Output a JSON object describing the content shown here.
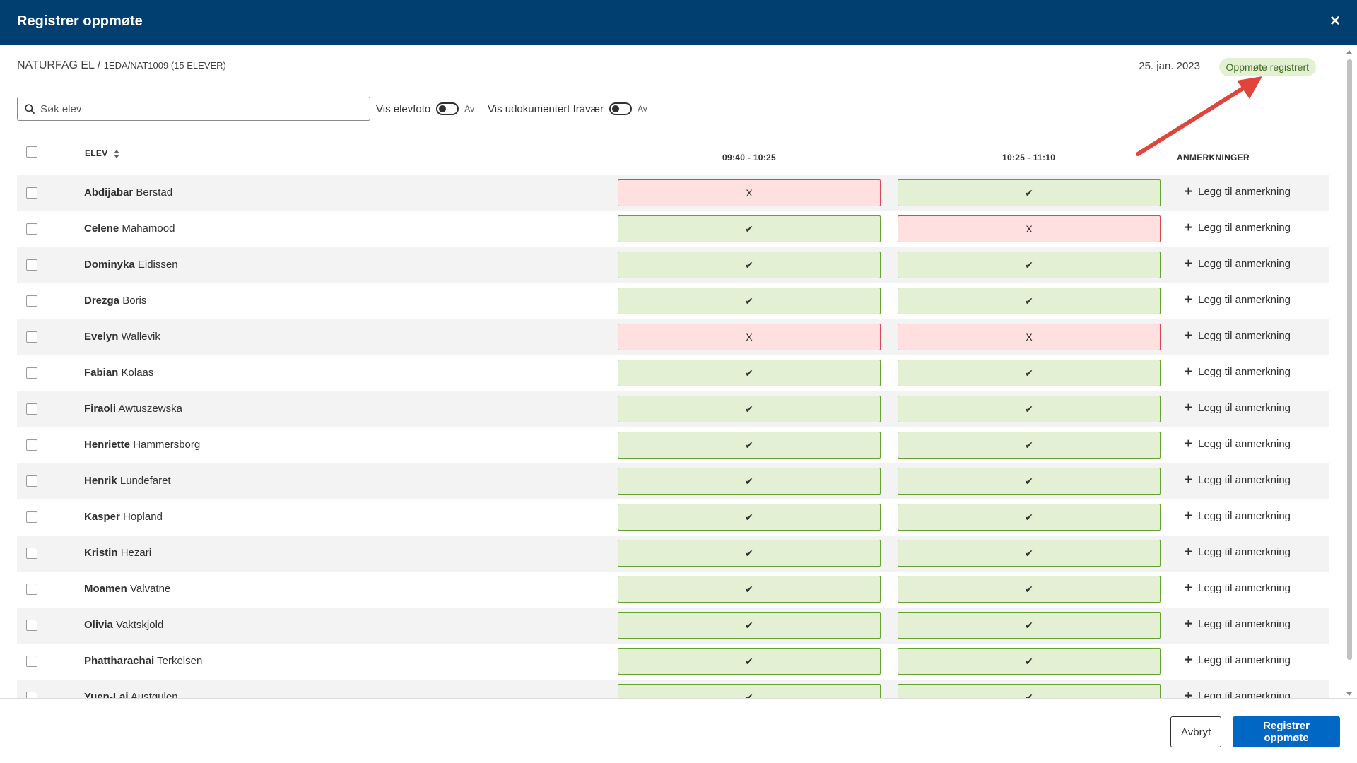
{
  "header": {
    "title": "Registrer oppmøte",
    "close_label": "×"
  },
  "subheader": {
    "course": "NATURFAG EL",
    "separator": " / ",
    "group": "1EDA/NAT1009 (15 ELEVER)",
    "date": "25. jan. 2023",
    "status": "Oppmøte registrert"
  },
  "toolbar": {
    "search_placeholder": "Søk elev",
    "toggle_photo_label": "Vis elevfoto",
    "toggle_photo_state": "Av",
    "toggle_absence_label": "Vis udokumentert fravær",
    "toggle_absence_state": "Av"
  },
  "table": {
    "headers": {
      "student": "ELEV",
      "slot1": "09:40 - 10:25",
      "slot2": "10:25 - 11:10",
      "notes": "ANMERKNINGER"
    },
    "add_note_label": "Legg til anmerkning",
    "absent_mark": "X",
    "present_mark": "✔",
    "rows": [
      {
        "first": "Abdijabar",
        "last": "Berstad",
        "slot1": "absent",
        "slot2": "present"
      },
      {
        "first": "Celene",
        "last": "Mahamood",
        "slot1": "present",
        "slot2": "absent"
      },
      {
        "first": "Dominyka",
        "last": "Eidissen",
        "slot1": "present",
        "slot2": "present"
      },
      {
        "first": "Drezga",
        "last": "Boris",
        "slot1": "present",
        "slot2": "present"
      },
      {
        "first": "Evelyn",
        "last": "Wallevik",
        "slot1": "absent",
        "slot2": "absent"
      },
      {
        "first": "Fabian",
        "last": "Kolaas",
        "slot1": "present",
        "slot2": "present"
      },
      {
        "first": "Firaoli",
        "last": "Awtuszewska",
        "slot1": "present",
        "slot2": "present"
      },
      {
        "first": "Henriette",
        "last": "Hammersborg",
        "slot1": "present",
        "slot2": "present"
      },
      {
        "first": "Henrik",
        "last": "Lundefaret",
        "slot1": "present",
        "slot2": "present"
      },
      {
        "first": "Kasper",
        "last": "Hopland",
        "slot1": "present",
        "slot2": "present"
      },
      {
        "first": "Kristin",
        "last": "Hezari",
        "slot1": "present",
        "slot2": "present"
      },
      {
        "first": "Moamen",
        "last": "Valvatne",
        "slot1": "present",
        "slot2": "present"
      },
      {
        "first": "Olivia",
        "last": "Vaktskjold",
        "slot1": "present",
        "slot2": "present"
      },
      {
        "first": "Phattharachai",
        "last": "Terkelsen",
        "slot1": "present",
        "slot2": "present"
      },
      {
        "first": "Yuen-Lai",
        "last": "Austgulen",
        "slot1": "present",
        "slot2": "present"
      }
    ]
  },
  "footer": {
    "cancel_label": "Avbryt",
    "submit_label": "Registrer oppmøte"
  },
  "colors": {
    "header_bg": "#003f6f",
    "present_bg": "#e3f0d4",
    "present_border": "#62a132",
    "absent_bg": "#fde0df",
    "absent_border": "#d8484e",
    "primary": "#0067c5",
    "annotation_arrow": "#e0443a"
  }
}
